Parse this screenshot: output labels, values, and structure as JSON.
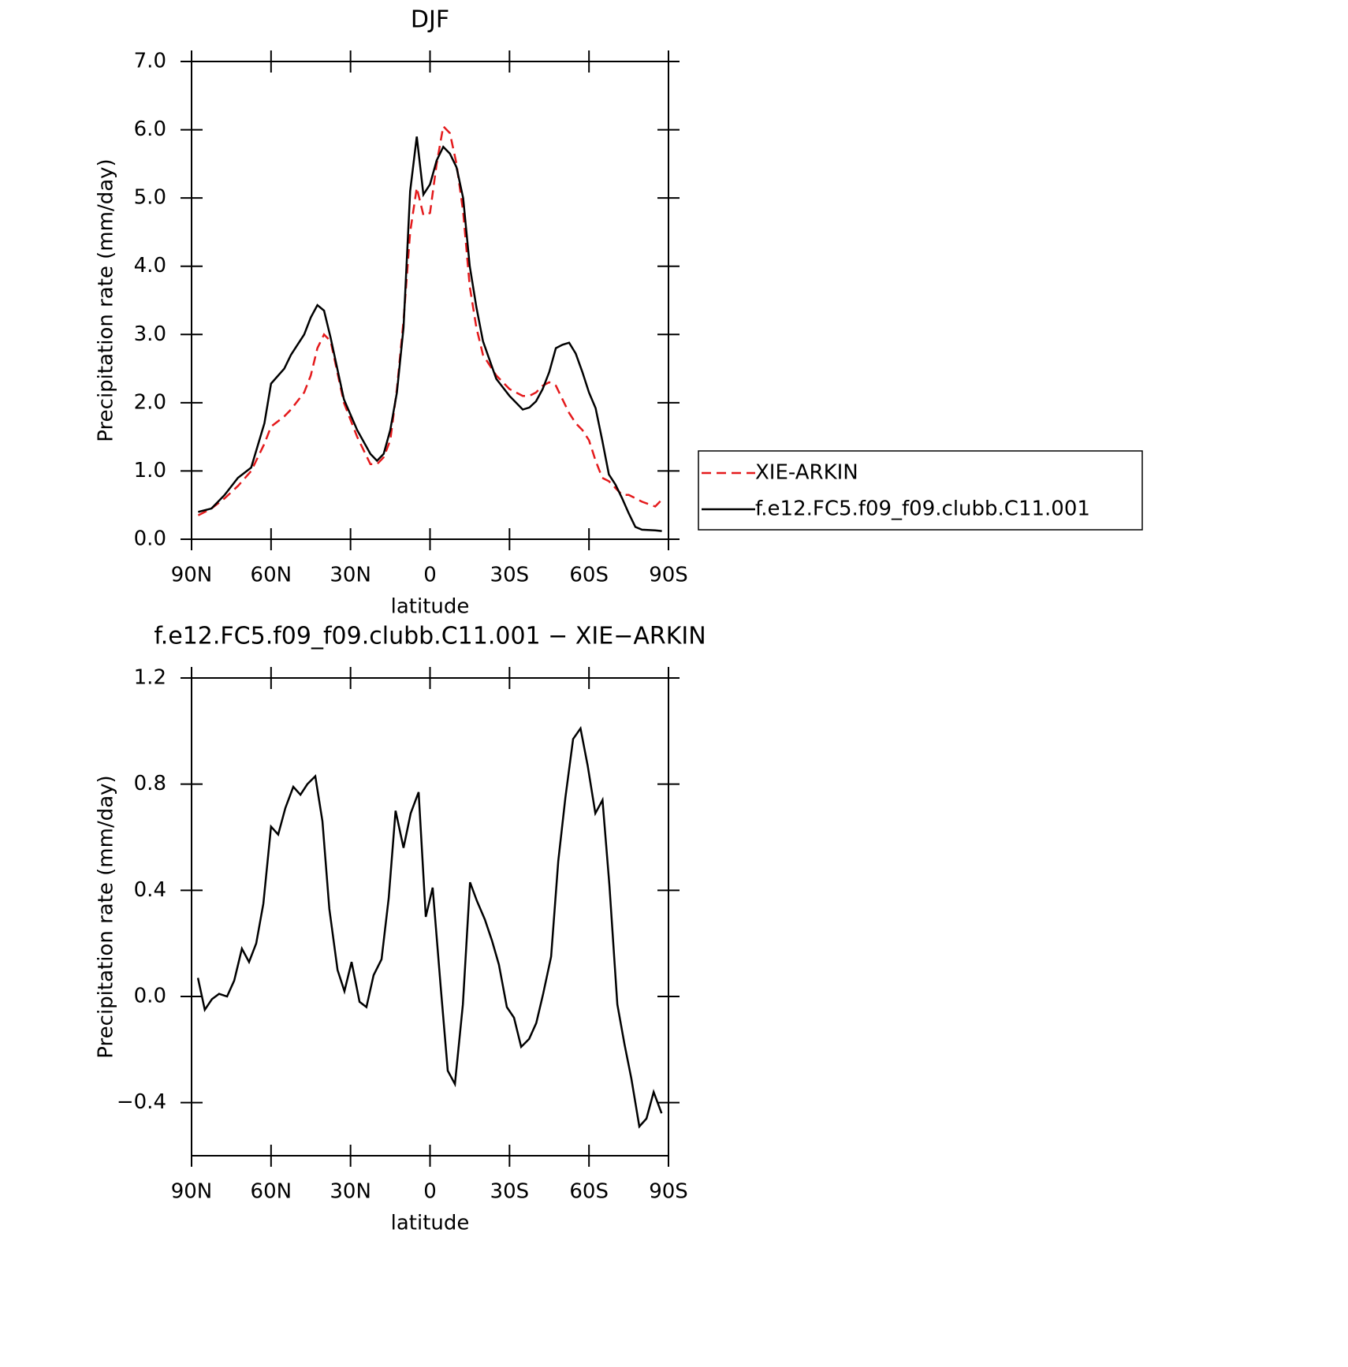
{
  "chart_data": [
    {
      "type": "line",
      "title": "DJF",
      "xlabel": "latitude",
      "ylabel": "Precipitation rate (mm/day)",
      "x": [
        87.5,
        82.5,
        77.5,
        72.5,
        67.5,
        62.5,
        60,
        55,
        52.5,
        47.5,
        45,
        42.5,
        40,
        37.5,
        32.5,
        27.5,
        22.5,
        20,
        17.5,
        15,
        12.5,
        10,
        7.5,
        5,
        2.5,
        0,
        -2.5,
        -5,
        -7.5,
        -10,
        -12.5,
        -15,
        -17.5,
        -20,
        -25,
        -30,
        -35,
        -37.5,
        -40,
        -42.5,
        -45,
        -47.5,
        -50,
        -52.5,
        -55,
        -57.5,
        -60,
        -62.5,
        -65,
        -67.5,
        -70,
        -72.5,
        -75,
        -77.5,
        -80,
        -85,
        -87.5
      ],
      "series": [
        {
          "name": "XIE-ARKIN",
          "color": "#e41a1c",
          "dash": true,
          "values": [
            0.35,
            0.45,
            0.6,
            0.78,
            1.0,
            1.4,
            1.65,
            1.8,
            1.9,
            2.15,
            2.4,
            2.8,
            3.0,
            2.9,
            2.0,
            1.5,
            1.1,
            1.1,
            1.2,
            1.45,
            2.2,
            3.2,
            4.5,
            5.15,
            4.75,
            4.78,
            5.5,
            6.05,
            5.95,
            5.5,
            4.8,
            3.7,
            3.1,
            2.7,
            2.4,
            2.2,
            2.1,
            2.1,
            2.15,
            2.25,
            2.3,
            2.25,
            2.05,
            1.85,
            1.7,
            1.6,
            1.45,
            1.15,
            0.9,
            0.85,
            0.75,
            0.65,
            0.65,
            0.6,
            0.55,
            0.48,
            0.58
          ]
        },
        {
          "name": "f.e12.FC5.f09_f09.clubb.C11.001",
          "color": "#000000",
          "dash": false,
          "values": [
            0.4,
            0.45,
            0.65,
            0.9,
            1.05,
            1.7,
            2.28,
            2.5,
            2.7,
            3.0,
            3.25,
            3.43,
            3.35,
            2.95,
            2.05,
            1.6,
            1.25,
            1.15,
            1.25,
            1.6,
            2.15,
            3.1,
            5.1,
            5.9,
            5.05,
            5.2,
            5.55,
            5.75,
            5.65,
            5.45,
            5.0,
            4.0,
            3.4,
            2.9,
            2.35,
            2.1,
            1.9,
            1.93,
            2.02,
            2.2,
            2.45,
            2.8,
            2.85,
            2.88,
            2.72,
            2.45,
            2.15,
            1.92,
            1.45,
            0.95,
            0.8,
            0.6,
            0.38,
            0.18,
            0.14,
            0.13,
            0.12
          ]
        }
      ],
      "xlim": [
        90,
        -90
      ],
      "xticks": [
        {
          "value": 90,
          "label": "90N"
        },
        {
          "value": 60,
          "label": "60N"
        },
        {
          "value": 30,
          "label": "30N"
        },
        0,
        {
          "value": -30,
          "label": "30S"
        },
        {
          "value": -60,
          "label": "60S"
        },
        {
          "value": -90,
          "label": "90S"
        }
      ],
      "ylim": [
        0,
        7
      ],
      "yticks": [
        {
          "value": 0,
          "label": "0.0"
        },
        {
          "value": 1,
          "label": "1.0"
        },
        {
          "value": 2,
          "label": "2.0"
        },
        {
          "value": 3,
          "label": "3.0"
        },
        {
          "value": 4,
          "label": "4.0"
        },
        {
          "value": 5,
          "label": "5.0"
        },
        {
          "value": 6,
          "label": "6.0"
        },
        {
          "value": 7,
          "label": "7.0"
        }
      ],
      "legend": "outside-right"
    },
    {
      "type": "line",
      "title": "f.e12.FC5.f09_f09.clubb.C11.001 − XIE−ARKIN",
      "xlabel": "latitude",
      "ylabel": "Precipitation rate (mm/day)",
      "x": [
        87.6,
        85,
        82.3,
        79.6,
        76.6,
        73.9,
        71,
        68.3,
        65.6,
        62.9,
        60,
        57.3,
        54.6,
        51.6,
        48.9,
        46.3,
        43.3,
        40.6,
        38,
        34.9,
        32.3,
        29.6,
        26.6,
        24,
        21.3,
        18.3,
        15.6,
        13,
        10,
        7.3,
        4.3,
        1.6,
        -1,
        -4,
        -6.7,
        -9.4,
        -12.4,
        -15.1,
        -17.7,
        -20.7,
        -23.4,
        -26,
        -29,
        -31.7,
        -34.4,
        -37.4,
        -40.1,
        -42.7,
        -45.7,
        -48.4,
        -51.1,
        -54,
        -56.8,
        -59.5,
        -62.4,
        -65.1,
        -67.7,
        -70.7,
        -73.4,
        -76,
        -79,
        -81.7,
        -84.4,
        -87.4
      ],
      "values": [
        0.07,
        -0.05,
        -0.01,
        0.01,
        0.0,
        0.06,
        0.18,
        0.13,
        0.2,
        0.35,
        0.64,
        0.61,
        0.71,
        0.79,
        0.76,
        0.8,
        0.83,
        0.66,
        0.33,
        0.1,
        0.02,
        0.13,
        -0.02,
        -0.04,
        0.08,
        0.14,
        0.37,
        0.7,
        0.56,
        0.69,
        0.77,
        0.3,
        0.41,
        0.04,
        -0.28,
        -0.33,
        -0.03,
        0.43,
        0.36,
        0.29,
        0.21,
        0.12,
        -0.04,
        -0.08,
        -0.19,
        -0.16,
        -0.1,
        0.01,
        0.15,
        0.51,
        0.75,
        0.97,
        1.01,
        0.87,
        0.69,
        0.74,
        0.42,
        -0.03,
        -0.18,
        -0.31,
        -0.49,
        -0.46,
        -0.36,
        -0.44
      ],
      "color": "#000000",
      "xlim": [
        90,
        -90
      ],
      "xticks": [
        {
          "value": 90,
          "label": "90N"
        },
        {
          "value": 60,
          "label": "60N"
        },
        {
          "value": 30,
          "label": "30N"
        },
        0,
        {
          "value": -30,
          "label": "30S"
        },
        {
          "value": -60,
          "label": "60S"
        },
        {
          "value": -90,
          "label": "90S"
        }
      ],
      "ylim": [
        -0.6,
        1.2
      ],
      "yticks": [
        {
          "value": -0.4,
          "label": "−0.4"
        },
        {
          "value": 0,
          "label": "0.0"
        },
        0.4,
        0.8,
        1.2
      ]
    }
  ]
}
